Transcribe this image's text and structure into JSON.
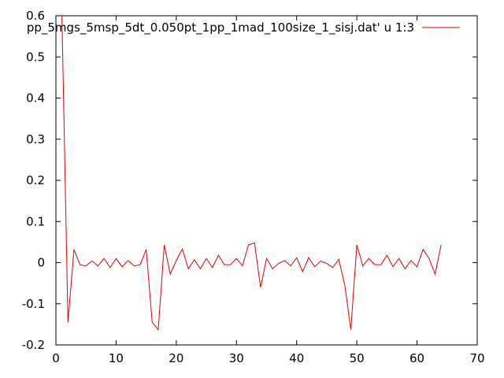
{
  "chart_data": {
    "type": "line",
    "title": "",
    "xlabel": "",
    "ylabel": "",
    "xlim": [
      0,
      70
    ],
    "ylim": [
      -0.2,
      0.6
    ],
    "x_ticks": [
      0,
      10,
      20,
      30,
      40,
      50,
      60,
      70
    ],
    "y_ticks": [
      -0.2,
      -0.1,
      0,
      0.1,
      0.2,
      0.3,
      0.4,
      0.5,
      0.6
    ],
    "x_tick_labels": [
      "0",
      "10",
      "20",
      "30",
      "40",
      "50",
      "60",
      "70"
    ],
    "y_tick_labels": [
      "-0.2",
      "-0.1",
      "0",
      "0.1",
      "0.2",
      "0.3",
      "0.4",
      "0.5",
      "0.6"
    ],
    "grid": false,
    "legend_position": "top-right",
    "series": [
      {
        "name": "pp_5mgs_5msp_5dt_0.050pt_1pp_1mad_100size_1_sisj.dat' u 1:3",
        "color": "#e00000",
        "x": [
          1,
          2,
          3,
          4,
          5,
          6,
          7,
          8,
          9,
          10,
          11,
          12,
          13,
          14,
          15,
          16,
          17,
          18,
          19,
          20,
          21,
          22,
          23,
          24,
          25,
          26,
          27,
          28,
          29,
          30,
          31,
          32,
          33,
          34,
          35,
          36,
          37,
          38,
          39,
          40,
          41,
          42,
          43,
          44,
          45,
          46,
          47,
          48,
          49,
          50,
          51,
          52,
          53,
          54,
          55,
          56,
          57,
          58,
          59,
          60,
          61,
          62,
          63,
          64
        ],
        "y": [
          0.6,
          -0.145,
          0.032,
          -0.005,
          -0.008,
          0.004,
          -0.008,
          0.01,
          -0.012,
          0.01,
          -0.01,
          0.005,
          -0.008,
          -0.005,
          0.032,
          -0.145,
          -0.163,
          0.043,
          -0.028,
          0.005,
          0.033,
          -0.015,
          0.007,
          -0.015,
          0.01,
          -0.012,
          0.018,
          -0.005,
          -0.005,
          0.01,
          -0.008,
          0.043,
          0.048,
          -0.06,
          0.01,
          -0.015,
          -0.002,
          0.005,
          -0.008,
          0.012,
          -0.022,
          0.012,
          -0.01,
          0.004,
          -0.002,
          -0.012,
          0.008,
          -0.055,
          -0.163,
          0.043,
          -0.008,
          0.01,
          -0.005,
          -0.005,
          0.018,
          -0.01,
          0.01,
          -0.015,
          0.005,
          -0.01,
          0.032,
          0.01,
          -0.028,
          0.043
        ]
      }
    ]
  }
}
